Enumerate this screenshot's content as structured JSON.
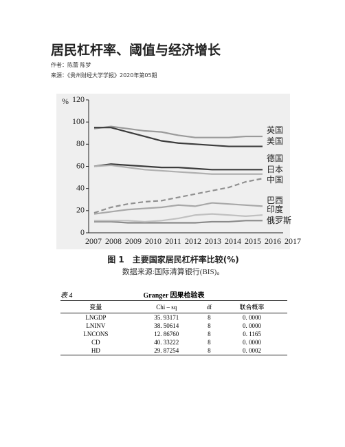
{
  "header": {
    "title": "居民杠杆率、阈值与经济增长",
    "author": "作者：陈蕾 陈梦",
    "source": "来源：《贵州财经大学学报》2020年第05期"
  },
  "chart_data": {
    "type": "line",
    "y_label": "%",
    "categories": [
      "2007",
      "2008",
      "2009",
      "2010",
      "2011",
      "2012",
      "2013",
      "2014",
      "2015",
      "2016",
      "2017"
    ],
    "ylim": [
      0,
      120
    ],
    "yticks": [
      0,
      20,
      40,
      60,
      80,
      100,
      120
    ],
    "series": [
      {
        "name": "英国",
        "color": "#9a9a9a",
        "values": [
          94,
          96,
          94,
          92,
          91,
          88,
          86,
          86,
          86,
          87,
          87
        ]
      },
      {
        "name": "美国",
        "color": "#3c3c3c",
        "values": [
          95,
          95,
          91,
          87,
          83,
          81,
          80,
          79,
          78,
          78,
          78
        ]
      },
      {
        "name": "德国",
        "color": "#3c3c3c",
        "values": [
          60,
          62,
          61,
          60,
          59,
          59,
          58,
          57,
          57,
          57,
          57
        ]
      },
      {
        "name": "日本",
        "color": "#b0b0b0",
        "values": [
          60,
          61,
          59,
          57,
          56,
          55,
          54,
          53,
          53,
          53,
          53
        ]
      },
      {
        "name": "中国",
        "color": "#909090",
        "dashed": true,
        "values": [
          18,
          23,
          26,
          28,
          29,
          32,
          35,
          38,
          41,
          46,
          49
        ]
      },
      {
        "name": "巴西",
        "color": "#a8a8a8",
        "values": [
          17,
          19,
          21,
          22,
          23,
          25,
          24,
          27,
          26,
          25,
          24
        ]
      },
      {
        "name": "印度",
        "color": "#8a8a8a",
        "values": [
          10,
          10,
          9,
          9,
          9,
          9,
          9,
          10,
          10,
          11,
          11
        ]
      },
      {
        "name": "俄罗斯",
        "color": "#c0c0c0",
        "values": [
          11,
          11,
          11,
          10,
          11,
          13,
          16,
          17,
          16,
          15,
          16
        ]
      }
    ]
  },
  "figure": {
    "caption": "图 1　主要国家居民杠杆率比较(%)",
    "source_note": "数据来源:国际清算银行(BIS)。"
  },
  "table": {
    "label": "表 4",
    "title": "Granger 因果检验表",
    "columns": [
      "变量",
      "Chi – sq",
      "df",
      "联合概率"
    ],
    "rows": [
      [
        "LNGDP",
        "35. 93171",
        "8",
        "0. 0000"
      ],
      [
        "LNINV",
        "38. 50614",
        "8",
        "0. 0000"
      ],
      [
        "LNCONS",
        "12. 86760",
        "8",
        "0. 1165"
      ],
      [
        "CD",
        "40. 33222",
        "8",
        "0. 0000"
      ],
      [
        "HD",
        "29. 87254",
        "8",
        "0. 0002"
      ]
    ]
  }
}
